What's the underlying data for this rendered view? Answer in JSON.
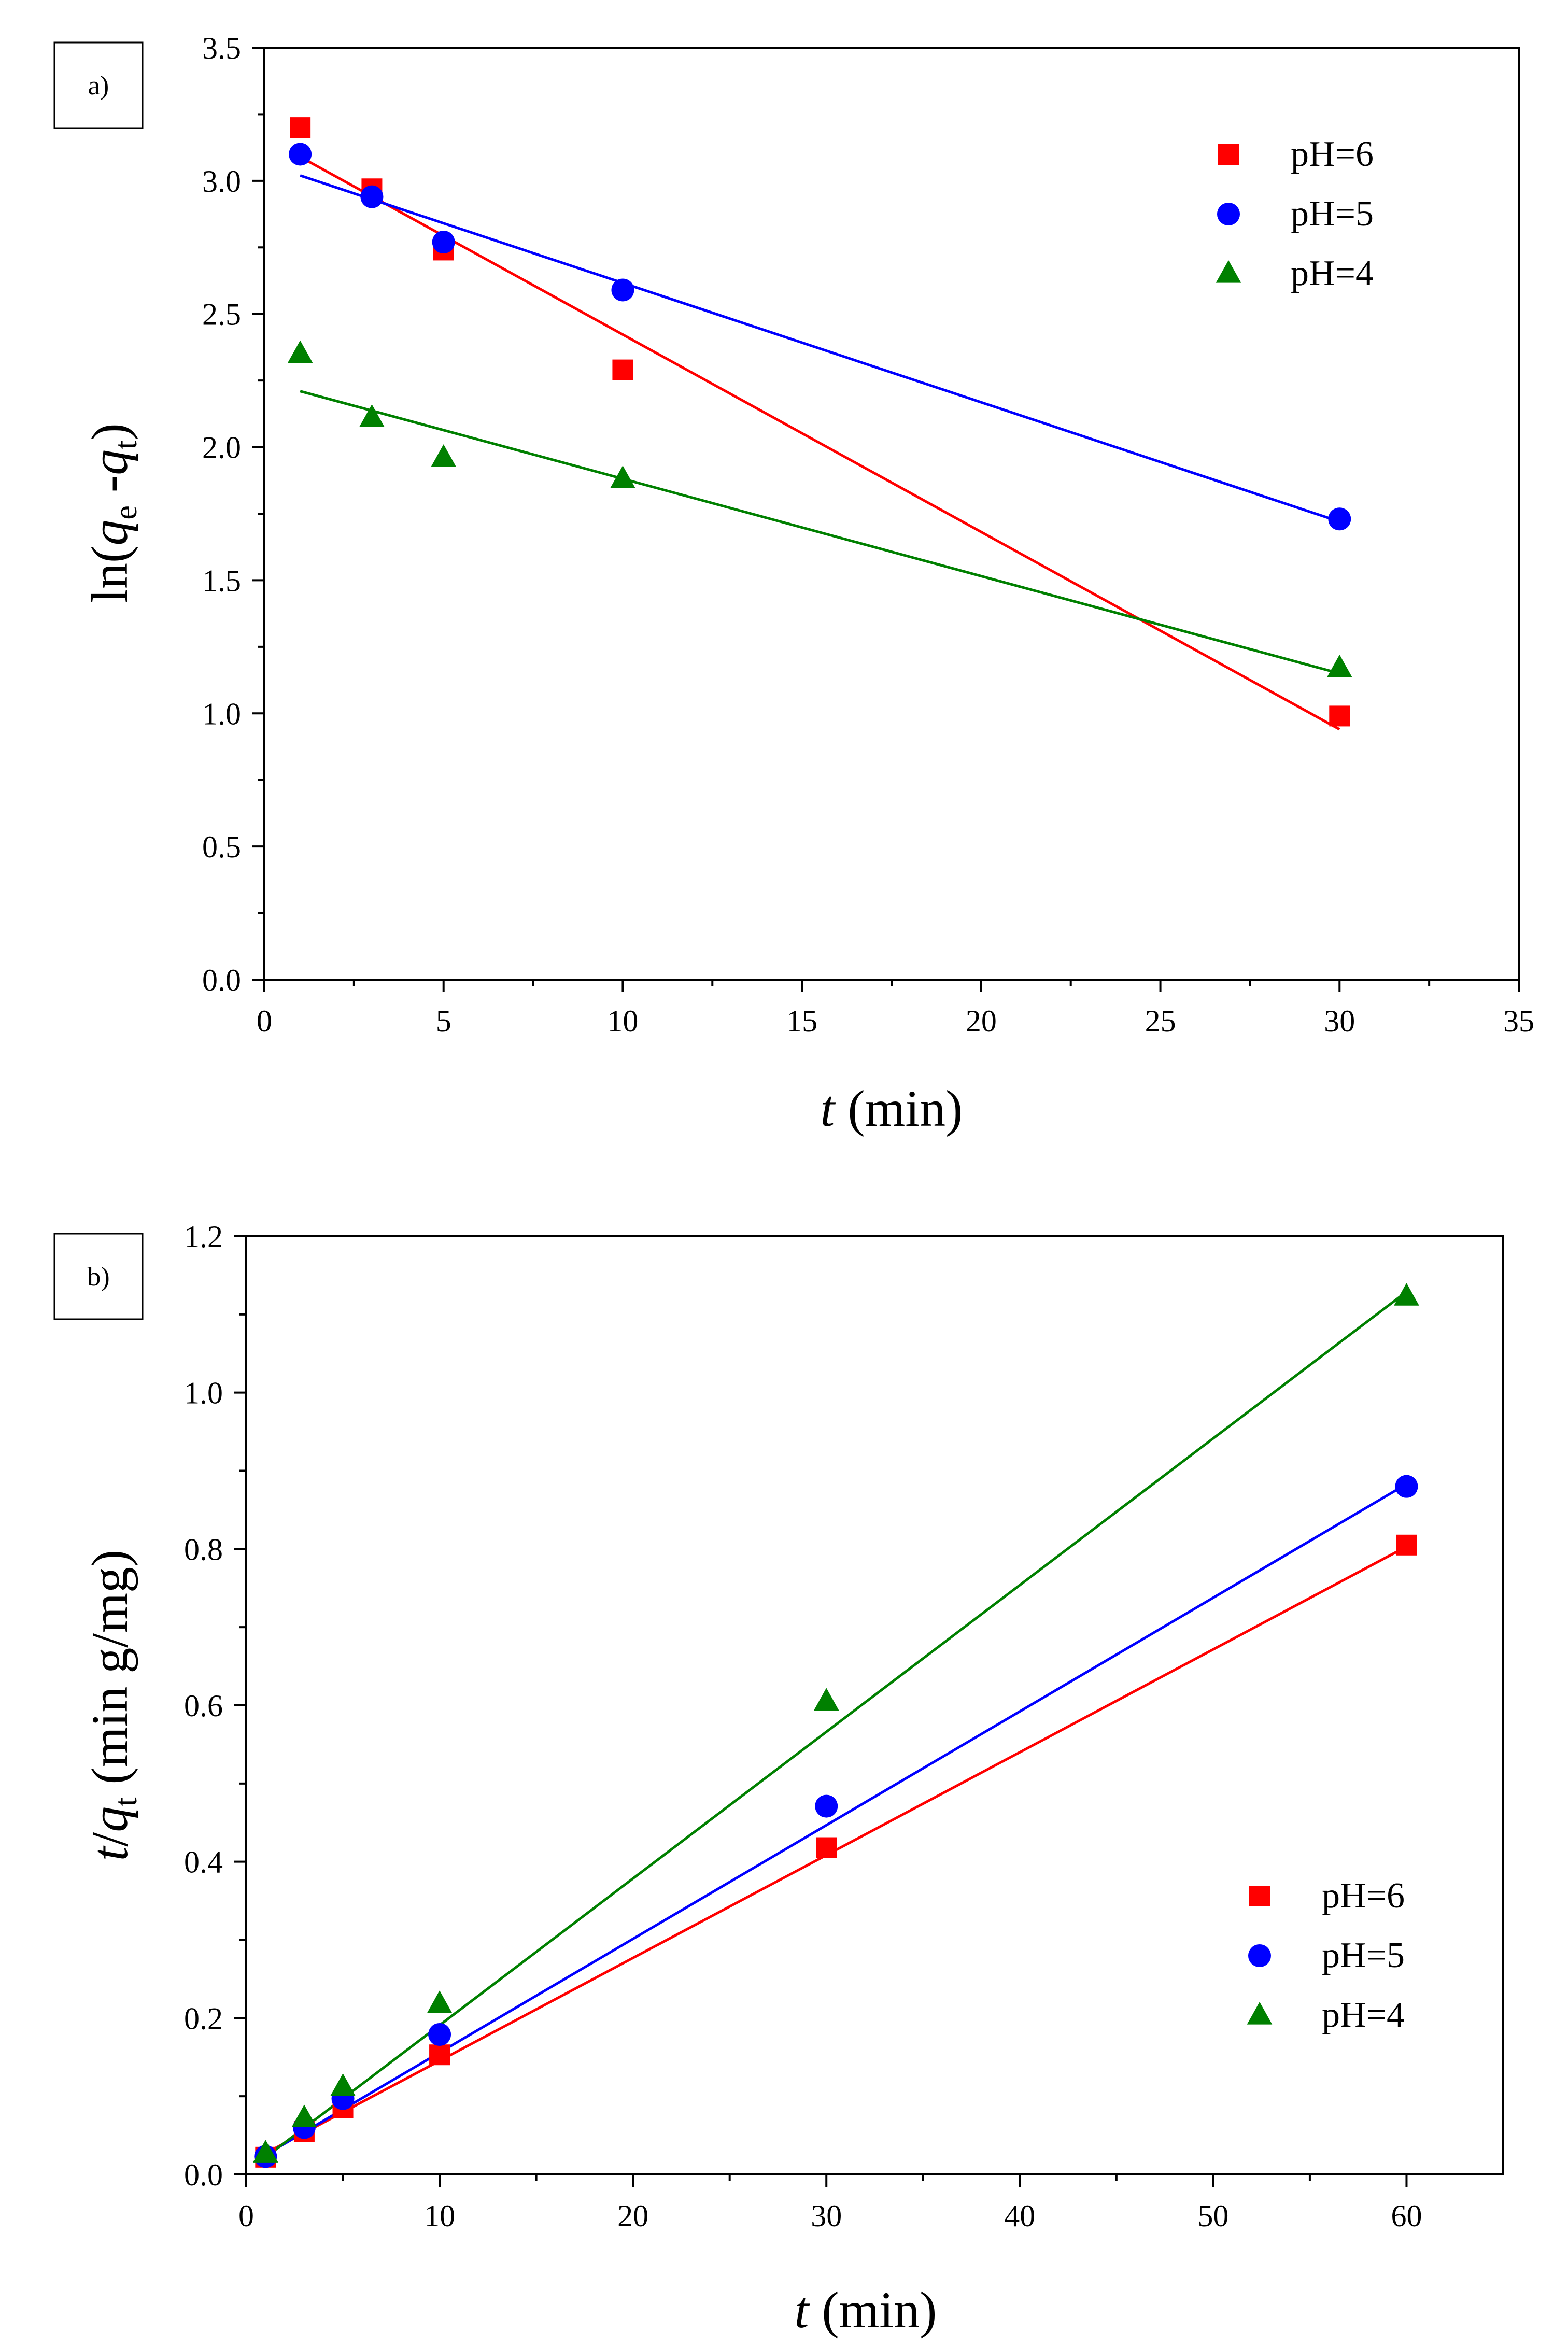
{
  "colors": {
    "pH6": "#ff0000",
    "pH5": "#0000ff",
    "pH4": "#008000"
  },
  "chart_data": [
    {
      "type": "scatter",
      "panel_label": "a)",
      "title": "",
      "xlabel_italic": "t",
      "xlabel_rest": " (min)",
      "ylabel_prefix": "ln(",
      "ylabel_q1": "q",
      "ylabel_sub1": "e",
      "ylabel_mid": " -",
      "ylabel_q2": "q",
      "ylabel_sub2": "t",
      "ylabel_suffix": ")",
      "xlim": [
        0,
        35
      ],
      "ylim": [
        0.0,
        3.5
      ],
      "xticks": [
        0,
        5,
        10,
        15,
        20,
        25,
        30,
        35
      ],
      "xtick_labels": [
        "0",
        "5",
        "10",
        "15",
        "20",
        "25",
        "30",
        "35"
      ],
      "yticks": [
        0.0,
        0.5,
        1.0,
        1.5,
        2.0,
        2.5,
        3.0,
        3.5
      ],
      "ytick_labels": [
        "0.0",
        "0.5",
        "1.0",
        "1.5",
        "2.0",
        "2.5",
        "3.0",
        "3.5"
      ],
      "legend_position": "top-right",
      "series": [
        {
          "name": "pH=6",
          "marker": "square",
          "color_key": "pH6",
          "x": [
            1,
            3,
            5,
            10,
            30
          ],
          "y": [
            3.2,
            2.97,
            2.74,
            2.29,
            0.99
          ],
          "fit": {
            "x": [
              1,
              30
            ],
            "y": [
              3.09,
              0.94
            ]
          }
        },
        {
          "name": "pH=5",
          "marker": "circle",
          "color_key": "pH5",
          "x": [
            1,
            3,
            5,
            10,
            30
          ],
          "y": [
            3.1,
            2.94,
            2.77,
            2.59,
            1.73
          ],
          "fit": {
            "x": [
              1,
              30
            ],
            "y": [
              3.02,
              1.72
            ]
          }
        },
        {
          "name": "pH=4",
          "marker": "triangle",
          "color_key": "pH4",
          "x": [
            1,
            3,
            5,
            10,
            30
          ],
          "y": [
            2.35,
            2.11,
            1.96,
            1.88,
            1.17
          ],
          "fit": {
            "x": [
              1,
              30
            ],
            "y": [
              2.21,
              1.15
            ]
          }
        }
      ]
    },
    {
      "type": "scatter",
      "panel_label": "b)",
      "title": "",
      "xlabel_italic": "t",
      "xlabel_rest": " (min)",
      "ylabel_t": "t",
      "ylabel_slash": "/",
      "ylabel_q": "q",
      "ylabel_sub": "t",
      "ylabel_rest": " (min g/mg)",
      "xlim": [
        0,
        65
      ],
      "ylim": [
        0.0,
        1.2
      ],
      "xticks": [
        0,
        10,
        20,
        30,
        40,
        50,
        60
      ],
      "xtick_labels": [
        "0",
        "10",
        "20",
        "30",
        "40",
        "50",
        "60"
      ],
      "yticks": [
        0.0,
        0.2,
        0.4,
        0.6,
        0.8,
        1.0,
        1.2
      ],
      "ytick_labels": [
        "0.0",
        "0.2",
        "0.4",
        "0.6",
        "0.8",
        "1.0",
        "1.2"
      ],
      "legend_position": "bottom-right",
      "series": [
        {
          "name": "pH=6",
          "marker": "square",
          "color_key": "pH6",
          "x": [
            1,
            3,
            5,
            10,
            30,
            60
          ],
          "y": [
            0.022,
            0.055,
            0.085,
            0.153,
            0.418,
            0.805
          ],
          "fit": {
            "x": [
              1,
              60
            ],
            "y": [
              0.027,
              0.803
            ]
          }
        },
        {
          "name": "pH=5",
          "marker": "circle",
          "color_key": "pH5",
          "x": [
            1,
            3,
            5,
            10,
            30,
            60
          ],
          "y": [
            0.023,
            0.06,
            0.097,
            0.179,
            0.471,
            0.88
          ],
          "fit": {
            "x": [
              1,
              60
            ],
            "y": [
              0.025,
              0.883
            ]
          }
        },
        {
          "name": "pH=4",
          "marker": "triangle",
          "color_key": "pH4",
          "x": [
            1,
            3,
            5,
            10,
            30,
            60
          ],
          "y": [
            0.027,
            0.072,
            0.112,
            0.218,
            0.605,
            1.123
          ],
          "fit": {
            "x": [
              1,
              60
            ],
            "y": [
              0.022,
              1.129
            ]
          }
        }
      ]
    }
  ]
}
